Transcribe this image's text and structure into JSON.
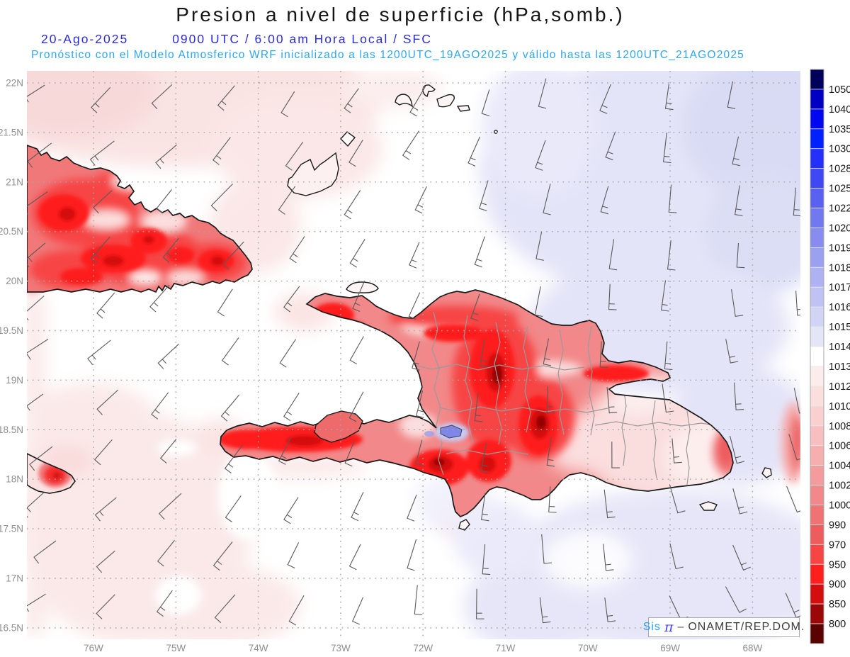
{
  "header": {
    "title": "Presion a nivel de superficie (hPa,somb.)",
    "date": "20-Ago-2025",
    "time": "0900 UTC / 6:00 am Hora Local / SFC",
    "forecast": "Pronóstico con el Modelo Atmosferico WRF inicializado a las 1200UTC_19AGO2025 y válido hasta las  1200UTC_21AGO2025"
  },
  "axes": {
    "lat_labels": [
      "22N",
      "21.5N",
      "21N",
      "20.5N",
      "20N",
      "19.5N",
      "19N",
      "18.5N",
      "18N",
      "17.5N",
      "17N",
      "16.5N"
    ],
    "lon_labels": [
      "76W",
      "75W",
      "74W",
      "73W",
      "72W",
      "71W",
      "70W",
      "69W",
      "68W"
    ]
  },
  "colorbar": {
    "labels": [
      "1050",
      "1040",
      "1035",
      "1030",
      "1028",
      "1025",
      "1022",
      "1020",
      "1019",
      "1018",
      "1017",
      "1016",
      "1015",
      "1014",
      "1013",
      "1012",
      "1010",
      "1008",
      "1006",
      "1004",
      "1002",
      "1000",
      "990",
      "970",
      "950",
      "900",
      "850",
      "800"
    ],
    "colors": [
      "#00005a",
      "#0000c4",
      "#0008f0",
      "#0020ff",
      "#2430fa",
      "#4048f4",
      "#5a60f0",
      "#7278ee",
      "#888cee",
      "#9ca0f0",
      "#aeb2f2",
      "#c0c2f4",
      "#d2d4f6",
      "#e4e6f8",
      "#ffffff",
      "#fcecec",
      "#fbdede",
      "#f9cfcf",
      "#f7bfbf",
      "#f6aeae",
      "#f49c9d",
      "#f28889",
      "#f07374",
      "#ee5c5d",
      "#f74444",
      "#ff1f1f",
      "#d40d0d",
      "#9b0606",
      "#5a0101"
    ]
  },
  "watermark": {
    "sis": "Sis",
    "pi": "π",
    "sep": "–",
    "org": "ONAMET/REP.DOM."
  },
  "chart_data": {
    "type": "heatmap",
    "title": "Presion a nivel de superficie (hPa,somb.)",
    "valid_time": "20-Ago-2025 0900 UTC / 6:00 am Hora Local / SFC",
    "model_run": "WRF inicializado 1200UTC_19AGO2025, válido hasta 1200UTC_21AGO2025",
    "units": "hPa",
    "lat_range": [
      16.5,
      22.1
    ],
    "lon_range": [
      -76.8,
      -67.4
    ],
    "scale_levels": [
      800,
      850,
      900,
      950,
      970,
      990,
      1000,
      1002,
      1004,
      1006,
      1008,
      1010,
      1012,
      1013,
      1014,
      1015,
      1016,
      1017,
      1018,
      1019,
      1020,
      1022,
      1025,
      1028,
      1030,
      1035,
      1040,
      1050
    ],
    "legend_position": "right",
    "grid": "dotted 0.5deg lat x 1deg lon",
    "notes": "Reds (<1013 hPa) shade the terrain of eastern Cuba, Hispaniola and eastern Jamaica with darkest cores (~950-990 hPa) over the Cordillera Central; white band ~1013-1014 hPa over the western ocean with pale pink patches; pale blue-lavender 1014-1016 hPa over the Atlantic east of ~72W; small blue spot at Lago Enriquillo; wind barbs depict E-SE trade winds turning northerly toward the east"
  }
}
